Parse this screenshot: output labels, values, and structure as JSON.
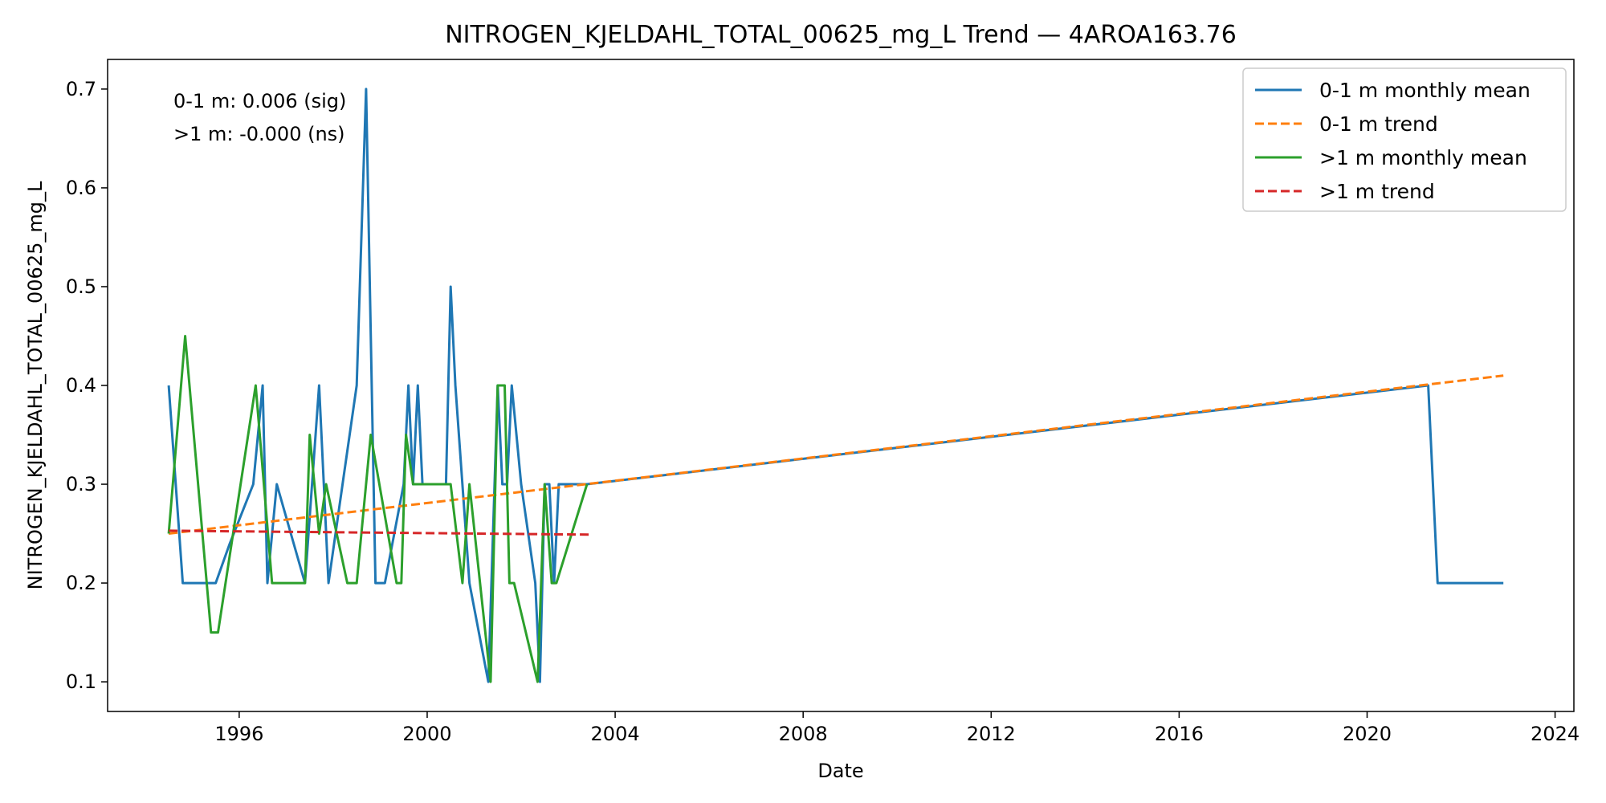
{
  "chart_data": {
    "type": "line",
    "title": "NITROGEN_KJELDAHL_TOTAL_00625_mg_L Trend — 4AROA163.76",
    "xlabel": "Date",
    "ylabel": "NITROGEN_KJELDAHL_TOTAL_00625_mg_L",
    "xlim": [
      1993.2,
      2024.4
    ],
    "ylim": [
      0.07,
      0.73
    ],
    "x_ticks": [
      1996,
      2000,
      2004,
      2008,
      2012,
      2016,
      2020,
      2024
    ],
    "y_ticks": [
      0.1,
      0.2,
      0.3,
      0.4,
      0.5,
      0.6,
      0.7
    ],
    "grid": false,
    "legend_position": "top-right",
    "annotations": [
      "0-1 m: 0.006 (sig)",
      ">1 m: -0.000 (ns)"
    ],
    "series": [
      {
        "name": "0-1 m monthly mean",
        "color": "#1f77b4",
        "style": "solid",
        "x": [
          1994.5,
          1994.8,
          1995.1,
          1995.5,
          1995.8,
          1996.3,
          1996.5,
          1996.6,
          1996.8,
          1997.1,
          1997.4,
          1997.7,
          1997.9,
          1998.2,
          1998.5,
          1998.7,
          1998.9,
          1999.1,
          1999.5,
          1999.6,
          1999.7,
          1999.8,
          1999.9,
          2000.1,
          2000.4,
          2000.5,
          2000.6,
          2000.9,
          2001.3,
          2001.5,
          2001.6,
          2001.7,
          2001.8,
          2002.0,
          2002.3,
          2002.4,
          2002.5,
          2002.6,
          2002.7,
          2002.8,
          2003.2,
          2003.4,
          2021.3,
          2021.5,
          2022.9
        ],
        "y": [
          0.4,
          0.2,
          0.2,
          0.2,
          0.24,
          0.3,
          0.4,
          0.2,
          0.3,
          0.25,
          0.2,
          0.4,
          0.2,
          0.3,
          0.4,
          0.7,
          0.2,
          0.2,
          0.3,
          0.4,
          0.3,
          0.4,
          0.3,
          0.3,
          0.3,
          0.5,
          0.4,
          0.2,
          0.1,
          0.4,
          0.3,
          0.3,
          0.4,
          0.3,
          0.2,
          0.1,
          0.3,
          0.3,
          0.2,
          0.3,
          0.3,
          0.3,
          0.4,
          0.2,
          0.2
        ]
      },
      {
        "name": "0-1 m trend",
        "color": "#ff7f0e",
        "style": "dashed",
        "x": [
          1994.5,
          2022.9
        ],
        "y": [
          0.25,
          0.41
        ]
      },
      {
        "name": ">1 m monthly mean",
        "color": "#2ca02c",
        "style": "solid",
        "x": [
          1994.5,
          1994.85,
          1995.4,
          1995.55,
          1996.35,
          1996.7,
          1996.8,
          1997.4,
          1997.5,
          1997.7,
          1997.85,
          1998.3,
          1998.5,
          1998.8,
          1999.35,
          1999.45,
          1999.55,
          1999.7,
          1999.8,
          2000.0,
          2000.5,
          2000.75,
          2000.9,
          2001.35,
          2001.5,
          2001.65,
          2001.75,
          2001.85,
          2002.35,
          2002.5,
          2002.65,
          2002.75,
          2003.4
        ],
        "y": [
          0.25,
          0.45,
          0.15,
          0.15,
          0.4,
          0.2,
          0.2,
          0.2,
          0.35,
          0.25,
          0.3,
          0.2,
          0.2,
          0.35,
          0.2,
          0.2,
          0.35,
          0.3,
          0.3,
          0.3,
          0.3,
          0.2,
          0.3,
          0.1,
          0.4,
          0.4,
          0.2,
          0.2,
          0.1,
          0.3,
          0.2,
          0.2,
          0.3
        ]
      },
      {
        "name": ">1 m trend",
        "color": "#d62728",
        "style": "dashed",
        "x": [
          1994.5,
          2003.5
        ],
        "y": [
          0.253,
          0.249
        ]
      }
    ]
  }
}
